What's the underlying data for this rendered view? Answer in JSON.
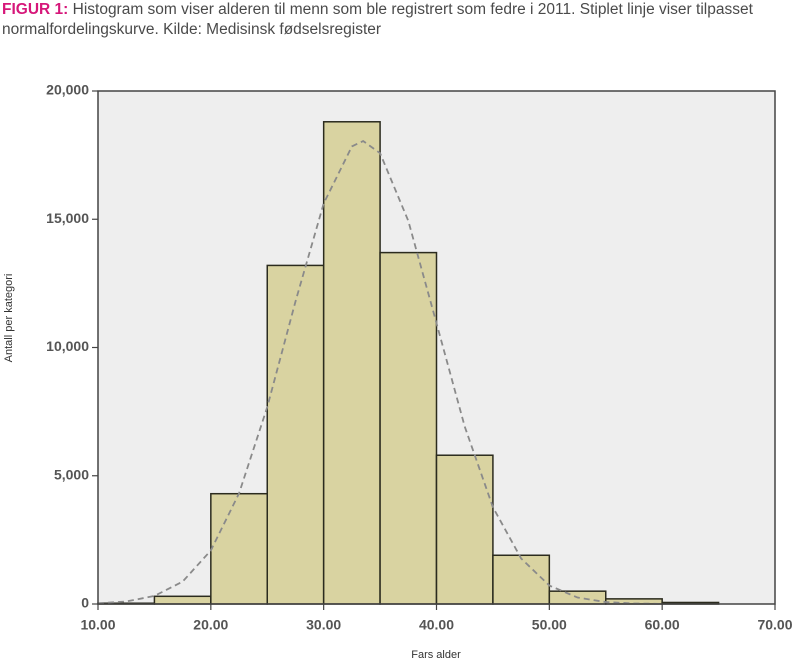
{
  "chart_data": {
    "type": "histogram",
    "figure_label": "FIGUR 1:",
    "title": "Histogram som viser alderen til menn som ble registrert som fedre i 2011. Stiplet linje viser tilpasset normalfordelingskurve. Kilde: Medisinsk fødselsregister",
    "x_label": "Fars alder",
    "y_label": "Antall per kategori",
    "bins": [
      10,
      15,
      20,
      25,
      30,
      35,
      40,
      45,
      50,
      55,
      60,
      65
    ],
    "counts": [
      30,
      300,
      4300,
      13200,
      18800,
      13700,
      5800,
      1900,
      500,
      200,
      60
    ],
    "color": "#d9d3a1",
    "edge_color": "#2b2b1e",
    "background": "#eeeeee",
    "curve": {
      "color": "#8a8a8a",
      "style": "dashed",
      "x": [
        10,
        12.5,
        15,
        17.5,
        20,
        22.5,
        25,
        27.5,
        30,
        32.5,
        33.5,
        35,
        37.5,
        40,
        42.5,
        45,
        47.5,
        50,
        52.5,
        55,
        57.5,
        60
      ],
      "values": [
        26,
        98,
        314,
        872,
        2088,
        4312,
        7677,
        11789,
        15613,
        17838,
        18050,
        17575,
        14937,
        10948,
        6920,
        3773,
        1775,
        720,
        252,
        76,
        20,
        4
      ]
    },
    "xlim": [
      10,
      70
    ],
    "xticks": [
      {
        "value": 10,
        "label": "10.00"
      },
      {
        "value": 20,
        "label": "20.00"
      },
      {
        "value": 30,
        "label": "30.00"
      },
      {
        "value": 40,
        "label": "40.00"
      },
      {
        "value": 50,
        "label": "50.00"
      },
      {
        "value": 60,
        "label": "60.00"
      },
      {
        "value": 70,
        "label": "70.00"
      }
    ],
    "ylim": [
      0,
      20000
    ],
    "yticks": [
      0,
      {
        "value": 5000,
        "label": "5,000"
      },
      {
        "value": 10000,
        "label": "10,000"
      },
      {
        "value": 15000,
        "label": "15,000"
      },
      {
        "value": 20000,
        "label": "20,000"
      }
    ]
  }
}
